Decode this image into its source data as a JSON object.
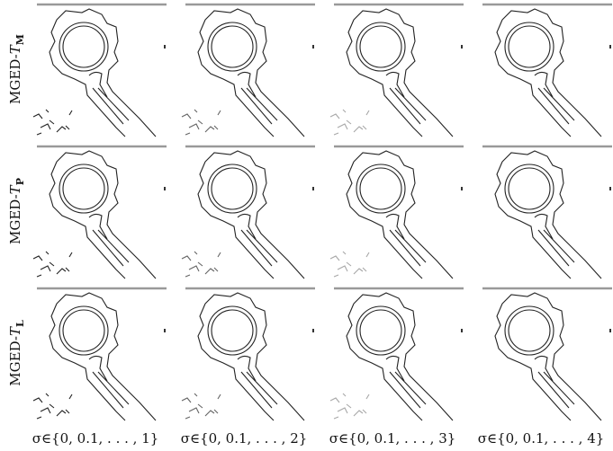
{
  "rows": [
    {
      "prefix": "MGED-",
      "symbol": "T",
      "subscript": "M"
    },
    {
      "prefix": "MGED-",
      "symbol": "T",
      "subscript": "P"
    },
    {
      "prefix": "MGED-",
      "symbol": "T",
      "subscript": "L"
    }
  ],
  "columns": [
    "σ∈{0, 0.1, . . . , 1}",
    "σ∈{0, 0.1, . . . , 2}",
    "σ∈{0, 0.1, . . . , 3}",
    "σ∈{0, 0.1, . . . , 4}"
  ]
}
